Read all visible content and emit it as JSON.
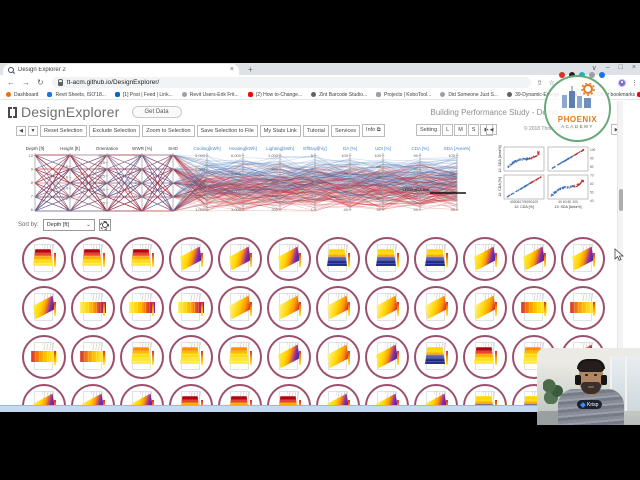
{
  "browser": {
    "tab_title": "Design Explorer 2",
    "tab_close": "×",
    "new_tab": "+",
    "window_controls": [
      "∨",
      "–",
      "□",
      "×"
    ],
    "nav": {
      "back": "←",
      "forward": "→",
      "reload": "↻"
    },
    "url": "tt-acm.github.io/DesignExplorer/",
    "bar_icons": {
      "share": "⇧",
      "star": "☆",
      "menu": "⋮"
    },
    "extension_colors": [
      "#d93025",
      "#202124",
      "#12b5cb",
      "#9aa0a6",
      "#1a73e8",
      "#f9ab00"
    ],
    "bookmarks": [
      {
        "label": "Dashboard",
        "color": "#e8710a",
        "round": true
      },
      {
        "label": "Revit Sheets, ISO'18...",
        "color": "#1a73e8",
        "round": false
      },
      {
        "label": "[1] Post | Feed | Link...",
        "color": "#0a66c2",
        "round": false
      },
      {
        "label": "Revit Users-Erik Frit...",
        "color": "#9aa0a6",
        "round": true
      },
      {
        "label": "(2) How to-Change...",
        "color": "#ff0000",
        "round": false
      },
      {
        "label": "Zint Barcode Studio...",
        "color": "#5f6368",
        "round": true
      },
      {
        "label": "Projects | KoboTool...",
        "color": "#9aa0a6",
        "round": false
      },
      {
        "label": "Did Someone Just S...",
        "color": "#9aa0a6",
        "round": true
      },
      {
        "label": "39-Dynamic-Energy...",
        "color": "#616161",
        "round": true
      },
      {
        "label": "(1) Revit - How to C...",
        "color": "#ff0000",
        "round": false
      },
      {
        "label": "مقدمة عن الدورة (1)",
        "color": "#ff0000",
        "round": false
      }
    ],
    "other_bookmarks": "Other bookmarks"
  },
  "app": {
    "logo_text": "DesignExplorer",
    "get_data": "Get Data",
    "page_title": "Building Performance Study - Demo",
    "nav_arrows": [
      "◀",
      "▼"
    ],
    "toolbar": [
      "Reset Selection",
      "Exclude Selection",
      "Zoom to Selection",
      "Save Selection to File",
      "My Stats Link",
      "Tutorial",
      "Services",
      "Info ⧉"
    ],
    "settings_cluster": [
      "Setting",
      "L",
      "M",
      "S",
      "▶"
    ],
    "pager": {
      "prev": "◀",
      "label": "© 2018 Thornton Tomasetti",
      "next": "▶"
    },
    "sort": {
      "label": "Sort by:",
      "value": "Depth [ft]",
      "caret": "⌄"
    }
  },
  "pcp": {
    "line_colors": {
      "red": "rgba(200,35,35,0.28)",
      "blue": "rgba(60,120,190,0.28)"
    },
    "input_label_color": "#444444",
    "output_label_color": "#4a86c8",
    "leed_label": "LEED-sDA line",
    "axes": [
      {
        "name": "Depth [ft]",
        "x": 35,
        "out": false,
        "ticks": [
          "10",
          "9",
          "8",
          "7",
          "6"
        ]
      },
      {
        "name": "Height [ft]",
        "x": 70,
        "out": false,
        "ticks": [
          "4",
          "3.8",
          "3.6",
          "3.4",
          "3.2",
          "3"
        ]
      },
      {
        "name": "Orientation",
        "x": 107,
        "out": false,
        "ticks": [
          "360",
          "315",
          "270",
          "225",
          "180",
          "135",
          "90",
          "45",
          "0"
        ]
      },
      {
        "name": "WWR [%]",
        "x": 142,
        "out": false,
        "ticks": [
          "0.7",
          "0.6",
          "0.5",
          "0.4",
          "0.3"
        ]
      },
      {
        "name": "SHD",
        "x": 173,
        "out": false,
        "ticks": [
          "4",
          "3",
          "2",
          "1",
          "0"
        ]
      },
      {
        "name": "Cooling[kWh]",
        "x": 207,
        "out": true,
        "ticks": [
          "3,000",
          "2,500",
          "2,000",
          "1,500",
          "1,000"
        ]
      },
      {
        "name": "Heating[kWh]",
        "x": 243,
        "out": true,
        "ticks": [
          "6,000",
          "5,000",
          "4,000",
          "3,000"
        ]
      },
      {
        "name": "Lighting[kWh]",
        "x": 280,
        "out": true,
        "ticks": [
          "1,000",
          "800",
          "600",
          "400",
          "200"
        ]
      },
      {
        "name": "EffDayl[h/y]",
        "x": 315,
        "out": true,
        "ticks": [
          "5",
          "4",
          "3",
          "2",
          "1"
        ]
      },
      {
        "name": "DA [%]",
        "x": 350,
        "out": true,
        "ticks": [
          "100",
          "80",
          "60",
          "40"
        ]
      },
      {
        "name": "UDI [%]",
        "x": 383,
        "out": true,
        "ticks": [
          "100",
          "90",
          "80",
          "70",
          "60",
          "50"
        ]
      },
      {
        "name": "CDA [%]",
        "x": 420,
        "out": true,
        "ticks": [
          "90",
          "80",
          "70",
          "60",
          "50"
        ]
      },
      {
        "name": "SDA [Area%]",
        "x": 457,
        "out": true,
        "ticks": [
          "100",
          "80",
          "60",
          "40"
        ]
      }
    ]
  },
  "scatter": {
    "y_labels": [
      "12: SDA [Area%]",
      "12: CDA [%]"
    ],
    "x_labels": [
      "12: CDA [%]",
      "13: SDA [Area%]"
    ],
    "x_ticks": [
      "405060708090100",
      "40  60  80  100"
    ],
    "y_ticks_right": [
      "100",
      "90",
      "80",
      "70",
      "60",
      "50",
      "40"
    ]
  },
  "grid": {
    "border_color": "#9b4f6e",
    "rows": [
      [
        "front-red",
        "front-red",
        "front-red",
        "iso-blue",
        "iso-blue",
        "iso-blue",
        "front-blue",
        "front-blue",
        "front-blue",
        "iso-blue",
        "iso-blue",
        "iso-blue",
        "iso-blue"
      ],
      [
        "side",
        "side",
        "side",
        "iso-red",
        "iso-red",
        "iso-red",
        "iso-red",
        "iso-red",
        "iso-red",
        "side-rev",
        "side-rev",
        "side-rev",
        "side-rev"
      ],
      [
        "front-yellow",
        "front-yellow",
        "front-yellow",
        "iso-blue",
        "iso-red",
        "iso-blue",
        "front-blue",
        "front-red",
        "front-yellow",
        "iso-blue",
        "iso-blue",
        "iso-blue",
        "iso-blue"
      ],
      [
        "front-red",
        "front-red",
        "front-red",
        "iso-blue",
        "iso-blue",
        "iso-blue",
        "front-blue",
        "front-blue",
        "front-blue",
        "iso-blue",
        "iso-blue",
        "iso-blue",
        "iso-blue"
      ]
    ]
  },
  "watermark": {
    "line1": "PHOENIX",
    "line2": "ACADEMY"
  },
  "webcam": {
    "badge": "Krisp"
  }
}
